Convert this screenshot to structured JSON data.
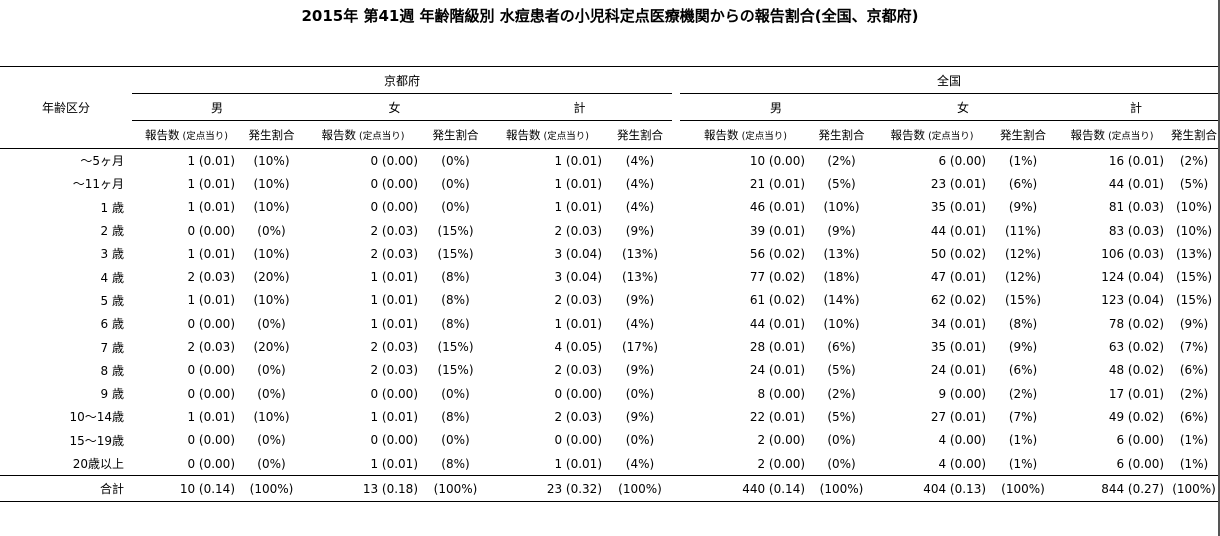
{
  "title": "2015年 第41週 年齢階級別 水痘患者の小児科定点医療機関からの報告割合(全国、京都府)",
  "header": {
    "age_label": "年齢区分",
    "regions": [
      "京都府",
      "全国"
    ],
    "sexes": [
      "男",
      "女",
      "計"
    ],
    "count_label": "報告数",
    "count_sub": "(定点当り)",
    "rate_label": "発生割合"
  },
  "rows": [
    {
      "age": "～5ヶ月",
      "kyoto": [
        [
          "1 (0.01)",
          "(10%)"
        ],
        [
          "0 (0.00)",
          "(0%)"
        ],
        [
          "1 (0.01)",
          "(4%)"
        ]
      ],
      "national": [
        [
          "10 (0.00)",
          "(2%)"
        ],
        [
          "6 (0.00)",
          "(1%)"
        ],
        [
          "16 (0.01)",
          "(2%)"
        ]
      ]
    },
    {
      "age": "～11ヶ月",
      "kyoto": [
        [
          "1 (0.01)",
          "(10%)"
        ],
        [
          "0 (0.00)",
          "(0%)"
        ],
        [
          "1 (0.01)",
          "(4%)"
        ]
      ],
      "national": [
        [
          "21 (0.01)",
          "(5%)"
        ],
        [
          "23 (0.01)",
          "(6%)"
        ],
        [
          "44 (0.01)",
          "(5%)"
        ]
      ]
    },
    {
      "age": "1 歳",
      "kyoto": [
        [
          "1 (0.01)",
          "(10%)"
        ],
        [
          "0 (0.00)",
          "(0%)"
        ],
        [
          "1 (0.01)",
          "(4%)"
        ]
      ],
      "national": [
        [
          "46 (0.01)",
          "(10%)"
        ],
        [
          "35 (0.01)",
          "(9%)"
        ],
        [
          "81 (0.03)",
          "(10%)"
        ]
      ]
    },
    {
      "age": "2 歳",
      "kyoto": [
        [
          "0 (0.00)",
          "(0%)"
        ],
        [
          "2 (0.03)",
          "(15%)"
        ],
        [
          "2 (0.03)",
          "(9%)"
        ]
      ],
      "national": [
        [
          "39 (0.01)",
          "(9%)"
        ],
        [
          "44 (0.01)",
          "(11%)"
        ],
        [
          "83 (0.03)",
          "(10%)"
        ]
      ]
    },
    {
      "age": "3 歳",
      "kyoto": [
        [
          "1 (0.01)",
          "(10%)"
        ],
        [
          "2 (0.03)",
          "(15%)"
        ],
        [
          "3 (0.04)",
          "(13%)"
        ]
      ],
      "national": [
        [
          "56 (0.02)",
          "(13%)"
        ],
        [
          "50 (0.02)",
          "(12%)"
        ],
        [
          "106 (0.03)",
          "(13%)"
        ]
      ]
    },
    {
      "age": "4 歳",
      "kyoto": [
        [
          "2 (0.03)",
          "(20%)"
        ],
        [
          "1 (0.01)",
          "(8%)"
        ],
        [
          "3 (0.04)",
          "(13%)"
        ]
      ],
      "national": [
        [
          "77 (0.02)",
          "(18%)"
        ],
        [
          "47 (0.01)",
          "(12%)"
        ],
        [
          "124 (0.04)",
          "(15%)"
        ]
      ]
    },
    {
      "age": "5 歳",
      "kyoto": [
        [
          "1 (0.01)",
          "(10%)"
        ],
        [
          "1 (0.01)",
          "(8%)"
        ],
        [
          "2 (0.03)",
          "(9%)"
        ]
      ],
      "national": [
        [
          "61 (0.02)",
          "(14%)"
        ],
        [
          "62 (0.02)",
          "(15%)"
        ],
        [
          "123 (0.04)",
          "(15%)"
        ]
      ]
    },
    {
      "age": "6 歳",
      "kyoto": [
        [
          "0 (0.00)",
          "(0%)"
        ],
        [
          "1 (0.01)",
          "(8%)"
        ],
        [
          "1 (0.01)",
          "(4%)"
        ]
      ],
      "national": [
        [
          "44 (0.01)",
          "(10%)"
        ],
        [
          "34 (0.01)",
          "(8%)"
        ],
        [
          "78 (0.02)",
          "(9%)"
        ]
      ]
    },
    {
      "age": "7 歳",
      "kyoto": [
        [
          "2 (0.03)",
          "(20%)"
        ],
        [
          "2 (0.03)",
          "(15%)"
        ],
        [
          "4 (0.05)",
          "(17%)"
        ]
      ],
      "national": [
        [
          "28 (0.01)",
          "(6%)"
        ],
        [
          "35 (0.01)",
          "(9%)"
        ],
        [
          "63 (0.02)",
          "(7%)"
        ]
      ]
    },
    {
      "age": "8 歳",
      "kyoto": [
        [
          "0 (0.00)",
          "(0%)"
        ],
        [
          "2 (0.03)",
          "(15%)"
        ],
        [
          "2 (0.03)",
          "(9%)"
        ]
      ],
      "national": [
        [
          "24 (0.01)",
          "(5%)"
        ],
        [
          "24 (0.01)",
          "(6%)"
        ],
        [
          "48 (0.02)",
          "(6%)"
        ]
      ]
    },
    {
      "age": "9 歳",
      "kyoto": [
        [
          "0 (0.00)",
          "(0%)"
        ],
        [
          "0 (0.00)",
          "(0%)"
        ],
        [
          "0 (0.00)",
          "(0%)"
        ]
      ],
      "national": [
        [
          "8 (0.00)",
          "(2%)"
        ],
        [
          "9 (0.00)",
          "(2%)"
        ],
        [
          "17 (0.01)",
          "(2%)"
        ]
      ]
    },
    {
      "age": "10～14歳",
      "kyoto": [
        [
          "1 (0.01)",
          "(10%)"
        ],
        [
          "1 (0.01)",
          "(8%)"
        ],
        [
          "2 (0.03)",
          "(9%)"
        ]
      ],
      "national": [
        [
          "22 (0.01)",
          "(5%)"
        ],
        [
          "27 (0.01)",
          "(7%)"
        ],
        [
          "49 (0.02)",
          "(6%)"
        ]
      ]
    },
    {
      "age": "15～19歳",
      "kyoto": [
        [
          "0 (0.00)",
          "(0%)"
        ],
        [
          "0 (0.00)",
          "(0%)"
        ],
        [
          "0 (0.00)",
          "(0%)"
        ]
      ],
      "national": [
        [
          "2 (0.00)",
          "(0%)"
        ],
        [
          "4 (0.00)",
          "(1%)"
        ],
        [
          "6 (0.00)",
          "(1%)"
        ]
      ]
    },
    {
      "age": "20歳以上",
      "kyoto": [
        [
          "0 (0.00)",
          "(0%)"
        ],
        [
          "1 (0.01)",
          "(8%)"
        ],
        [
          "1 (0.01)",
          "(4%)"
        ]
      ],
      "national": [
        [
          "2 (0.00)",
          "(0%)"
        ],
        [
          "4 (0.00)",
          "(1%)"
        ],
        [
          "6 (0.00)",
          "(1%)"
        ]
      ]
    }
  ],
  "total": {
    "age": "合計",
    "kyoto": [
      [
        "10 (0.14)",
        "(100%)"
      ],
      [
        "13 (0.18)",
        "(100%)"
      ],
      [
        "23 (0.32)",
        "(100%)"
      ]
    ],
    "national": [
      [
        "440 (0.14)",
        "(100%)"
      ],
      [
        "404 (0.13)",
        "(100%)"
      ],
      [
        "844 (0.27)",
        "(100%)"
      ]
    ]
  }
}
